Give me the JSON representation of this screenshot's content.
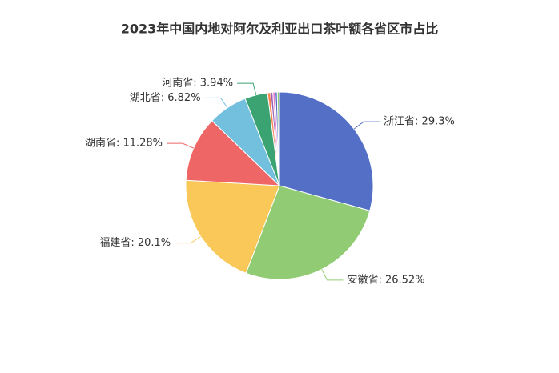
{
  "chart_data": {
    "type": "pie",
    "title": "2023年中国内地对阿尔及利亚出口茶叶额各省区市占比",
    "categories": [
      "浙江省",
      "安徽省",
      "福建省",
      "湖南省",
      "湖北省",
      "河南省",
      null,
      null,
      null,
      null,
      null
    ],
    "values": [
      29.3,
      26.52,
      20.1,
      11.28,
      6.82,
      3.94,
      0.5,
      0.4,
      0.4,
      0.36,
      0.38
    ],
    "value_labels": [
      "浙江省: 29.3%",
      "安徽省: 26.52%",
      "福建省: 20.1%",
      "湖南省: 11.28%",
      "湖北省: 6.82%",
      "河南省: 3.94%",
      null,
      null,
      null,
      null,
      null
    ],
    "colors": [
      "#5470c6",
      "#91cc75",
      "#fac858",
      "#ee6666",
      "#73c0de",
      "#3ba272",
      "#fc8452",
      "#9a60b4",
      "#ea7ccc",
      "#5470c6",
      "#91cc75"
    ]
  }
}
